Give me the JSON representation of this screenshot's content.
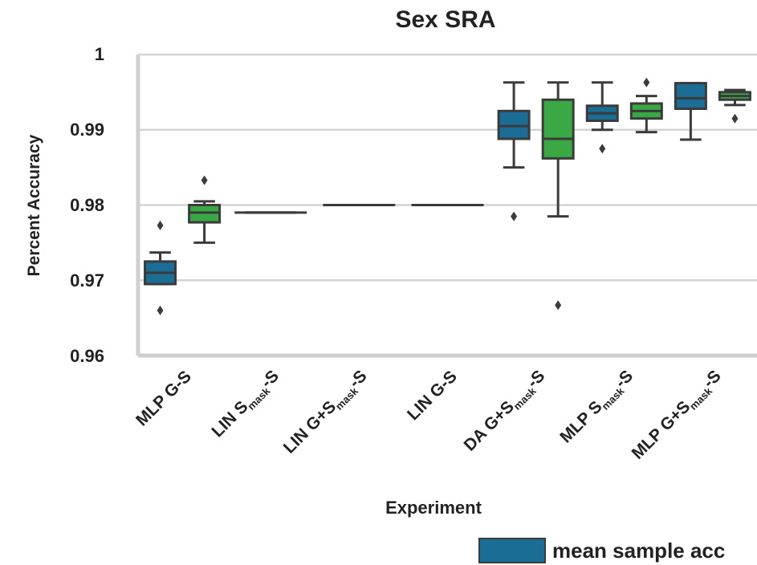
{
  "chart_data": {
    "type": "box",
    "title": "Sex SRA",
    "xlabel": "Experiment",
    "ylabel": "Percent Accuracy",
    "ylim": [
      0.96,
      1.0
    ],
    "yticks": [
      "1",
      "0.99",
      "0.98",
      "0.97",
      "0.96"
    ],
    "ytick_values": [
      1.0,
      0.99,
      0.98,
      0.97,
      0.96
    ],
    "grid": "horizontal",
    "legend": {
      "position": "bottom-right",
      "entries": [
        {
          "label": "mean sample acc",
          "color": "#1a6e96"
        }
      ]
    },
    "colors": {
      "blue": "#1a6e96",
      "green": "#3aa845"
    },
    "categories": [
      {
        "label": "MLP G-S",
        "boxes": [
          {
            "color": "blue",
            "q1": 0.9695,
            "median": 0.971,
            "q3": 0.9725,
            "whislo": 0.9695,
            "whishi": 0.9737,
            "fliers": [
              0.966,
              0.9773
            ]
          },
          {
            "color": "green",
            "q1": 0.9777,
            "median": 0.979,
            "q3": 0.98,
            "whislo": 0.975,
            "whishi": 0.9805,
            "fliers": [
              0.9833
            ]
          }
        ]
      },
      {
        "label": "LIN S-mask-S",
        "boxes": [
          {
            "color": "blue",
            "q1": 0.979,
            "median": 0.979,
            "q3": 0.979,
            "whislo": 0.979,
            "whishi": 0.979,
            "fliers": []
          }
        ]
      },
      {
        "label": "LIN G+S-mask-S",
        "boxes": [
          {
            "color": "blue",
            "q1": 0.98,
            "median": 0.98,
            "q3": 0.98,
            "whislo": 0.98,
            "whishi": 0.98,
            "fliers": []
          }
        ]
      },
      {
        "label": "LIN G-S",
        "boxes": [
          {
            "color": "blue",
            "q1": 0.98,
            "median": 0.98,
            "q3": 0.98,
            "whislo": 0.98,
            "whishi": 0.98,
            "fliers": []
          }
        ]
      },
      {
        "label": "DA G+S-mask-S",
        "boxes": [
          {
            "color": "blue",
            "q1": 0.9888,
            "median": 0.9905,
            "q3": 0.9925,
            "whislo": 0.985,
            "whishi": 0.9963,
            "fliers": [
              0.9785
            ]
          },
          {
            "color": "green",
            "q1": 0.9862,
            "median": 0.9888,
            "q3": 0.994,
            "whislo": 0.9785,
            "whishi": 0.9963,
            "fliers": [
              0.9667
            ]
          }
        ]
      },
      {
        "label": "MLP S-mask-S",
        "boxes": [
          {
            "color": "blue",
            "q1": 0.9912,
            "median": 0.9922,
            "q3": 0.9932,
            "whislo": 0.99,
            "whishi": 0.9963,
            "fliers": [
              0.9875
            ]
          },
          {
            "color": "green",
            "q1": 0.9915,
            "median": 0.9925,
            "q3": 0.9935,
            "whislo": 0.9897,
            "whishi": 0.9945,
            "fliers": [
              0.9963
            ]
          }
        ]
      },
      {
        "label": "MLP G+S-mask-S",
        "boxes": [
          {
            "color": "blue",
            "q1": 0.9928,
            "median": 0.9942,
            "q3": 0.9962,
            "whislo": 0.9887,
            "whishi": 0.9962,
            "fliers": []
          },
          {
            "color": "green",
            "q1": 0.994,
            "median": 0.9945,
            "q3": 0.995,
            "whislo": 0.9933,
            "whishi": 0.9953,
            "fliers": [
              0.9915
            ]
          }
        ]
      }
    ],
    "tick_labels": [
      {
        "main": "MLP G-S",
        "sub": "",
        "tail": ""
      },
      {
        "main": "LIN S",
        "sub": "mask",
        "tail": "-S"
      },
      {
        "main": "LIN G+S",
        "sub": "mask",
        "tail": "-S"
      },
      {
        "main": "LIN G-S",
        "sub": "",
        "tail": ""
      },
      {
        "main": "DA G+S",
        "sub": "mask",
        "tail": "-S"
      },
      {
        "main": "MLP S",
        "sub": "mask",
        "tail": "-S"
      },
      {
        "main": "MLP G+S",
        "sub": "mask",
        "tail": "-S"
      }
    ]
  }
}
